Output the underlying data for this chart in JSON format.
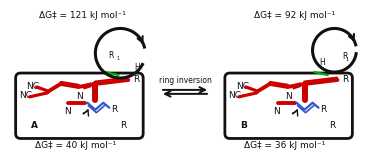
{
  "title_left": "ΔG‡ = 121 kJ mol⁻¹",
  "title_right": "ΔG‡ = 92 kJ mol⁻¹",
  "bottom_left": "ΔG‡ = 40 kJ mol⁻¹",
  "bottom_right": "ΔG‡ = 36 kJ mol⁻¹",
  "center_label": "ring inversion",
  "label_A": "A",
  "label_B": "B",
  "bg_color": "#ffffff",
  "red_color": "#cc0000",
  "blue_color": "#3355cc",
  "green_color": "#00aa00",
  "black_color": "#111111"
}
